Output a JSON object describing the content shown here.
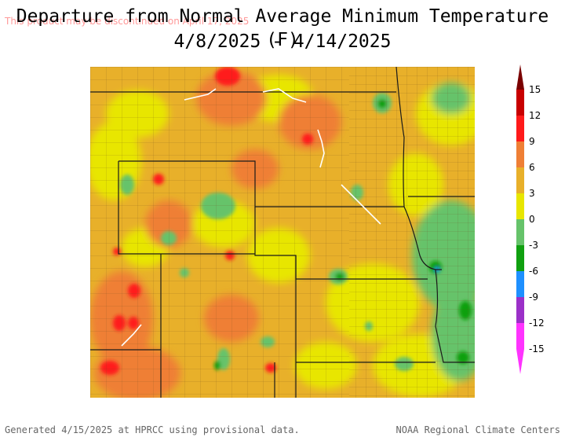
{
  "watermark": "This product may be discontinued on April 17, 2025",
  "title": {
    "line1": "Departure from Normal Average Minimum Temperature (F)",
    "line2": "4/8/2025 - 4/14/2025"
  },
  "legend": {
    "ticks": [
      "15",
      "12",
      "9",
      "6",
      "3",
      "0",
      "-3",
      "-6",
      "-9",
      "-12",
      "-15"
    ],
    "colors": [
      "#7a0000",
      "#c80000",
      "#ff1a1a",
      "#ef7f35",
      "#e8b02a",
      "#e8e600",
      "#66c36a",
      "#10a010",
      "#1e90ff",
      "#9b30c8",
      "#ff33ff"
    ]
  },
  "map": {
    "base_color": "#e8b02a",
    "palette": {
      "warm_dark": "#c80000",
      "warm": "#ff1a1a",
      "orange": "#ef7f35",
      "tan": "#e8b02a",
      "yellow": "#e8e600",
      "light_green": "#66c36a",
      "green": "#10a010",
      "blue": "#1e90ff"
    }
  },
  "footer": {
    "left": "Generated 4/15/2025 at HPRCC using provisional data.",
    "right": "NOAA Regional Climate Centers"
  }
}
